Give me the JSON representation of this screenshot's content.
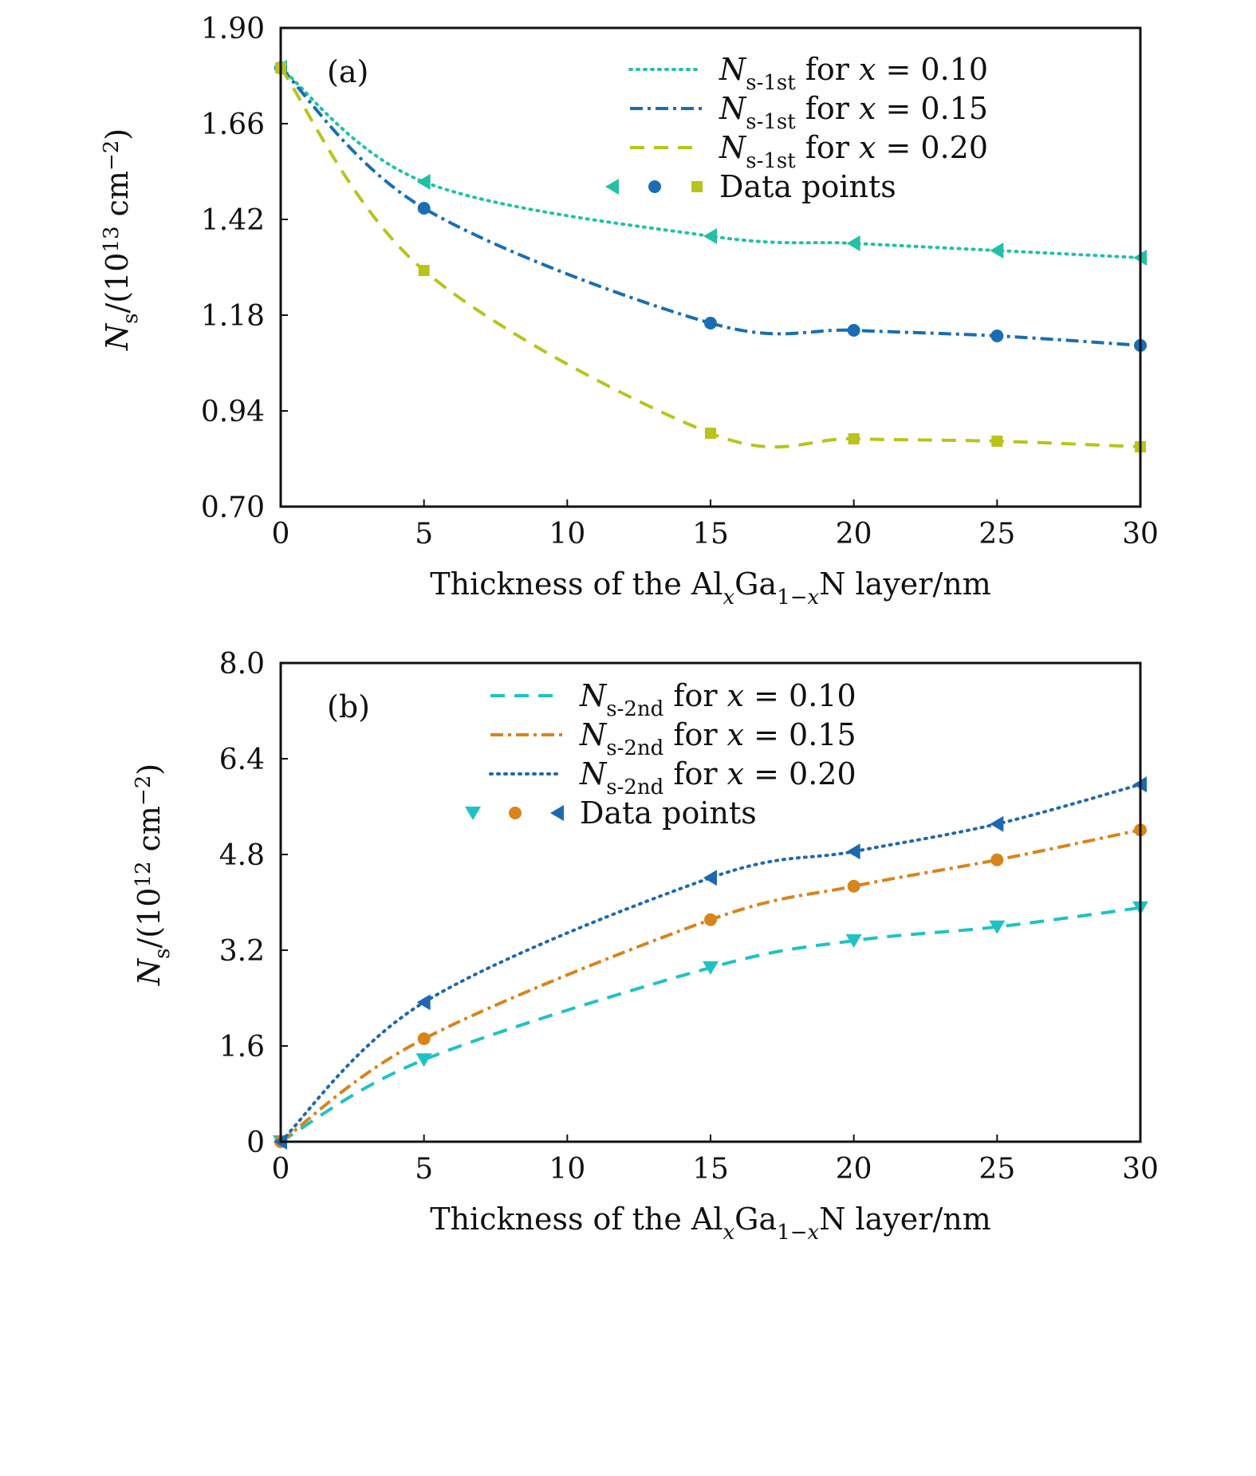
{
  "chart_data": [
    {
      "type": "line",
      "panel_label": "(a)",
      "xlim": [
        0,
        30
      ],
      "ylim": [
        0.7,
        1.9
      ],
      "xticks": [
        "0",
        "5",
        "10",
        "15",
        "20",
        "25",
        "30"
      ],
      "yticks": [
        "0.70",
        "0.94",
        "1.18",
        "1.42",
        "1.66",
        "1.90"
      ],
      "xlabel": [
        {
          "t": "Thickness of the Al"
        },
        {
          "t": "x",
          "i": true,
          "sub": true
        },
        {
          "t": "Ga"
        },
        {
          "t": "1−",
          "sub": true
        },
        {
          "t": "x",
          "i": true,
          "sub": true
        },
        {
          "t": "N layer/nm"
        }
      ],
      "ylabel": [
        {
          "t": "N",
          "i": true
        },
        {
          "t": "s",
          "sub": true
        },
        {
          "t": "/(10"
        },
        {
          "t": "13",
          "sup": true
        },
        {
          "t": " cm"
        },
        {
          "t": "−2",
          "sup": true
        },
        {
          "t": ")"
        }
      ],
      "legend_placement": "top-right",
      "data_points_label": "Data points",
      "x": [
        0,
        5,
        15,
        20,
        25,
        30
      ],
      "series": [
        {
          "name": [
            {
              "t": "N",
              "i": true
            },
            {
              "t": "s-1st",
              "sub": true
            },
            {
              "t": " for "
            },
            {
              "t": "x",
              "i": true
            },
            {
              "t": " = 0.10"
            }
          ],
          "values": [
            1.8,
            1.514,
            1.378,
            1.36,
            1.342,
            1.324
          ],
          "color": "#22c1a6",
          "dash": "dotted",
          "marker": "triangle-left"
        },
        {
          "name": [
            {
              "t": "N",
              "i": true
            },
            {
              "t": "s-1st",
              "sub": true
            },
            {
              "t": " for "
            },
            {
              "t": "x",
              "i": true
            },
            {
              "t": " = 0.15"
            }
          ],
          "values": [
            1.8,
            1.448,
            1.16,
            1.142,
            1.128,
            1.104
          ],
          "color": "#1a6db5",
          "dash": "dash-dot",
          "marker": "circle"
        },
        {
          "name": [
            {
              "t": "N",
              "i": true
            },
            {
              "t": "s-1st",
              "sub": true
            },
            {
              "t": " for "
            },
            {
              "t": "x",
              "i": true
            },
            {
              "t": " = 0.20"
            }
          ],
          "values": [
            1.8,
            1.292,
            0.884,
            0.87,
            0.864,
            0.85
          ],
          "color": "#b8c41a",
          "dash": "dashed",
          "marker": "square"
        }
      ]
    },
    {
      "type": "line",
      "panel_label": "(b)",
      "xlim": [
        0,
        30
      ],
      "ylim": [
        0,
        8.0
      ],
      "xticks": [
        "0",
        "5",
        "10",
        "15",
        "20",
        "25",
        "30"
      ],
      "yticks": [
        "0",
        "1.6",
        "3.2",
        "4.8",
        "6.4",
        "8.0"
      ],
      "xlabel": [
        {
          "t": "Thickness of the Al"
        },
        {
          "t": "x",
          "i": true,
          "sub": true
        },
        {
          "t": "Ga"
        },
        {
          "t": "1−",
          "sub": true
        },
        {
          "t": "x",
          "i": true,
          "sub": true
        },
        {
          "t": "N layer/nm"
        }
      ],
      "ylabel": [
        {
          "t": "N",
          "i": true
        },
        {
          "t": "s",
          "sub": true
        },
        {
          "t": "/(10"
        },
        {
          "t": "12",
          "sup": true
        },
        {
          "t": " cm"
        },
        {
          "t": "−2",
          "sup": true
        },
        {
          "t": ")"
        }
      ],
      "legend_placement": "top-center",
      "data_points_label": "Data points",
      "x": [
        0,
        5,
        15,
        20,
        25,
        30
      ],
      "series": [
        {
          "name": [
            {
              "t": "N",
              "i": true
            },
            {
              "t": "s-2nd",
              "sub": true
            },
            {
              "t": " for "
            },
            {
              "t": "x",
              "i": true
            },
            {
              "t": " = 0.10"
            }
          ],
          "values": [
            0,
            1.37,
            2.91,
            3.36,
            3.59,
            3.91
          ],
          "color": "#1fc2c4",
          "dash": "dashed",
          "marker": "triangle-down"
        },
        {
          "name": [
            {
              "t": "N",
              "i": true
            },
            {
              "t": "s-2nd",
              "sub": true
            },
            {
              "t": " for "
            },
            {
              "t": "x",
              "i": true
            },
            {
              "t": " = 0.15"
            }
          ],
          "values": [
            0,
            1.72,
            3.71,
            4.27,
            4.71,
            5.21
          ],
          "color": "#d8841c",
          "dash": "dash-dot",
          "marker": "circle"
        },
        {
          "name": [
            {
              "t": "N",
              "i": true
            },
            {
              "t": "s-2nd",
              "sub": true
            },
            {
              "t": " for "
            },
            {
              "t": "x",
              "i": true
            },
            {
              "t": " = 0.20"
            }
          ],
          "values": [
            0,
            2.33,
            4.41,
            4.85,
            5.31,
            5.97
          ],
          "color": "#1f68b0",
          "dash": "dotted",
          "marker": "triangle-left"
        }
      ]
    }
  ]
}
